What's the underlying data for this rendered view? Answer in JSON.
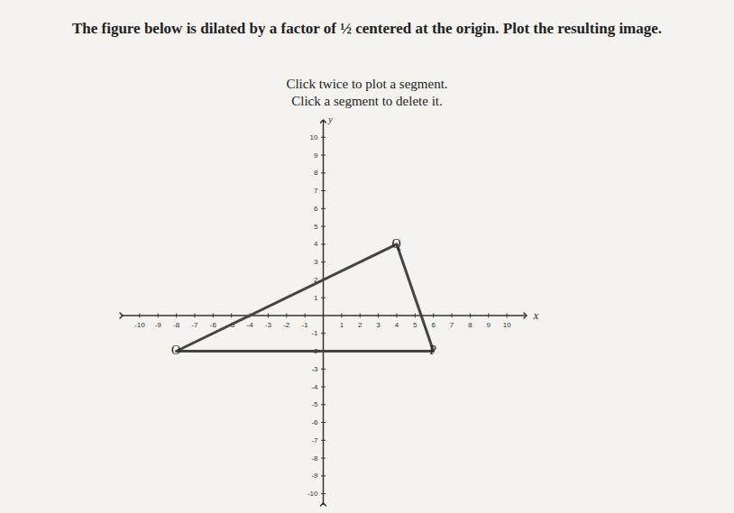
{
  "chart_data": {
    "type": "line",
    "title": "The figure below is dilated by a factor of ½ centered at the origin. Plot the resulting image.",
    "annotations": [
      "Click twice to plot a segment.",
      "Click a segment to delete it."
    ],
    "x_label": "x",
    "y_label": "y",
    "points": [
      {
        "label": "O",
        "x": -8,
        "y": -2
      },
      {
        "label": "P",
        "x": 6,
        "y": -2
      },
      {
        "label": "Q",
        "x": 4,
        "y": 4
      }
    ],
    "color": "#444444",
    "xlim": [
      -11,
      11
    ],
    "ylim": [
      -10.6,
      10.9
    ],
    "xticks": [
      -10,
      -9,
      -8,
      -7,
      -6,
      -5,
      -4,
      -3,
      -2,
      -1,
      1,
      2,
      3,
      4,
      5,
      6,
      7,
      8,
      9,
      10
    ],
    "yticks": [
      -10,
      -9,
      -8,
      -7,
      -6,
      -5,
      -4,
      -3,
      -2,
      -1,
      1,
      2,
      3,
      4,
      5,
      6,
      7,
      8,
      9,
      10
    ],
    "grid": false
  }
}
